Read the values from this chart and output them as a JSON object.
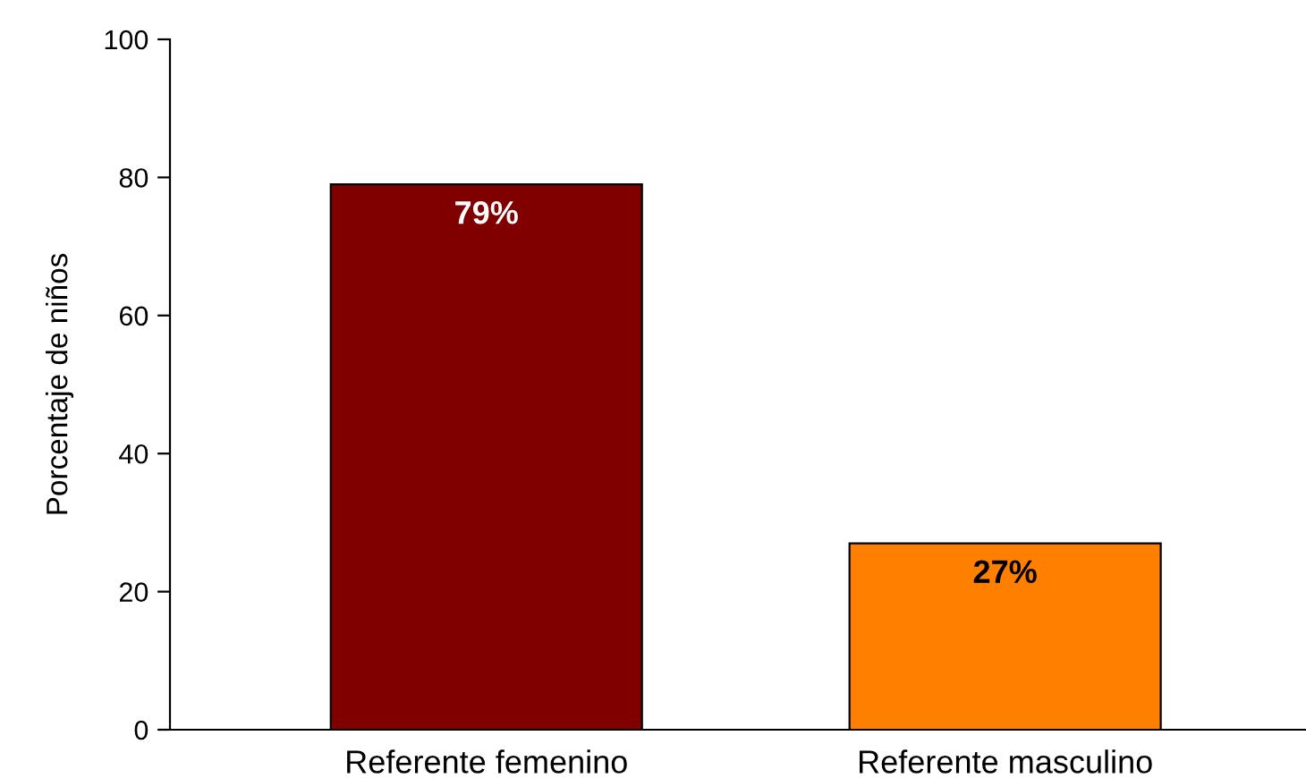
{
  "chart_data": {
    "type": "bar",
    "ylabel": "Porcentaje de niños",
    "categories": [
      "Referente femenino",
      "Referente masculino"
    ],
    "values": [
      79,
      27
    ],
    "colors": [
      "#800000",
      "#ff8000"
    ],
    "value_labels": [
      "79%",
      "27%"
    ],
    "ylim": [
      0,
      100
    ],
    "yticks": [
      0,
      20,
      40,
      60,
      80,
      100
    ],
    "grid": false
  }
}
